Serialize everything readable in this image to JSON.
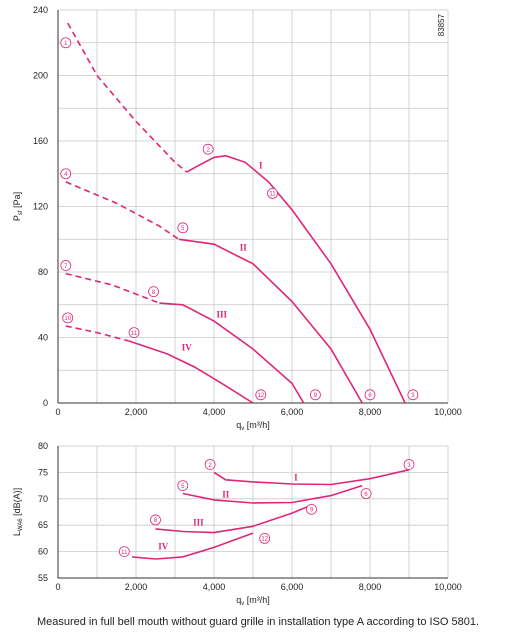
{
  "chart_data": [
    {
      "type": "line",
      "id_label": "83857",
      "x_label": {
        "main": "q",
        "sub": "v",
        "unit": " [m³/h]"
      },
      "y_label": {
        "main": "P",
        "sub": "sf",
        "unit": " [Pa]"
      },
      "xlim": [
        0,
        10000
      ],
      "ylim": [
        0,
        240
      ],
      "xticks": [
        0,
        {
          "value": 2000,
          "label": "2,000"
        },
        {
          "value": 4000,
          "label": "4,000"
        },
        {
          "value": 6000,
          "label": "6,000"
        },
        {
          "value": 8000,
          "label": "8,000"
        },
        {
          "value": 10000,
          "label": "10,000"
        }
      ],
      "yticks": [
        0,
        40,
        80,
        120,
        160,
        200,
        240
      ],
      "minor_xticks": [
        1000,
        3000,
        5000,
        7000,
        9000
      ],
      "minor_yticks": [
        20,
        60,
        100,
        140,
        180,
        220
      ],
      "color": "#e0267a",
      "series": [
        {
          "name": "I",
          "label_at": [
            5200,
            145
          ],
          "segments": [
            {
              "style": "dashed",
              "x": [
                250,
                1000,
                2000,
                3000,
                3300
              ],
              "y": [
                232,
                200,
                172,
                147,
                141
              ]
            },
            {
              "style": "solid",
              "x": [
                3300,
                3600,
                4000,
                4300,
                4800,
                5400,
                6000,
                7000,
                8000,
                8900
              ],
              "y": [
                141,
                145,
                150,
                151,
                147,
                135,
                118,
                85,
                45,
                0
              ]
            }
          ]
        },
        {
          "name": "II",
          "label_at": [
            4750,
            95
          ],
          "segments": [
            {
              "style": "dashed",
              "x": [
                200,
                1500,
                2600,
                3100
              ],
              "y": [
                135,
                122,
                108,
                100
              ]
            },
            {
              "style": "solid",
              "x": [
                3100,
                4000,
                5000,
                6000,
                7000,
                7800
              ],
              "y": [
                100,
                97,
                85,
                62,
                33,
                0
              ]
            }
          ]
        },
        {
          "name": "III",
          "label_at": [
            4200,
            54
          ],
          "segments": [
            {
              "style": "dashed",
              "x": [
                200,
                1400,
                2600
              ],
              "y": [
                79,
                72,
                61
              ]
            },
            {
              "style": "solid",
              "x": [
                2600,
                3200,
                4000,
                5000,
                6000,
                6300
              ],
              "y": [
                61,
                60,
                50,
                33,
                12,
                0
              ]
            }
          ]
        },
        {
          "name": "IV",
          "label_at": [
            3300,
            34
          ],
          "segments": [
            {
              "style": "dashed",
              "x": [
                200,
                1000,
                1800
              ],
              "y": [
                47,
                43,
                38
              ]
            },
            {
              "style": "solid",
              "x": [
                1800,
                2800,
                3500,
                4200,
                5000
              ],
              "y": [
                38,
                30,
                22,
                12,
                0
              ]
            }
          ]
        }
      ],
      "markers": [
        {
          "label": "1",
          "x": 200,
          "y": 220
        },
        {
          "label": "2",
          "x": 3850,
          "y": 155
        },
        {
          "label": "3",
          "x": 9100,
          "y": 5
        },
        {
          "label": "4",
          "x": 200,
          "y": 140
        },
        {
          "label": "5",
          "x": 3200,
          "y": 107
        },
        {
          "label": "6",
          "x": 8000,
          "y": 5
        },
        {
          "label": "7",
          "x": 200,
          "y": 84
        },
        {
          "label": "8",
          "x": 2450,
          "y": 68
        },
        {
          "label": "9",
          "x": 6600,
          "y": 5
        },
        {
          "label": "10",
          "x": 250,
          "y": 52
        },
        {
          "label": "11",
          "x": 1950,
          "y": 43
        },
        {
          "label": "12",
          "x": 5200,
          "y": 5
        },
        {
          "label": "11",
          "x": 5500,
          "y": 128
        }
      ]
    },
    {
      "type": "line",
      "x_label": {
        "main": "q",
        "sub": "v",
        "unit": " [m³/h]"
      },
      "y_label": {
        "main": "L",
        "sub": "WA6",
        "unit": " [dB(A)]"
      },
      "xlim": [
        0,
        10000
      ],
      "ylim": [
        55,
        80
      ],
      "xticks": [
        0,
        {
          "value": 2000,
          "label": "2,000"
        },
        {
          "value": 4000,
          "label": "4,000"
        },
        {
          "value": 6000,
          "label": "6,000"
        },
        {
          "value": 8000,
          "label": "8,000"
        },
        {
          "value": 10000,
          "label": "10,000"
        }
      ],
      "yticks": [
        55,
        60,
        65,
        70,
        75,
        80
      ],
      "minor_xticks": [
        1000,
        3000,
        5000,
        7000,
        9000
      ],
      "minor_yticks": [],
      "color": "#e0267a",
      "series": [
        {
          "name": "I",
          "label_at": [
            6100,
            74
          ],
          "segments": [
            {
              "style": "solid",
              "x": [
                4000,
                4300,
                5000,
                6000,
                7000,
                8000,
                9000
              ],
              "y": [
                75,
                73.6,
                73.2,
                72.8,
                72.7,
                73.8,
                75.5
              ]
            }
          ]
        },
        {
          "name": "II",
          "label_at": [
            4300,
            70.8
          ],
          "segments": [
            {
              "style": "solid",
              "x": [
                3200,
                4000,
                5000,
                6000,
                7000,
                7800
              ],
              "y": [
                71,
                69.8,
                69.2,
                69.3,
                70.6,
                72.5
              ]
            }
          ]
        },
        {
          "name": "III",
          "label_at": [
            3600,
            65.5
          ],
          "segments": [
            {
              "style": "solid",
              "x": [
                2500,
                3200,
                4000,
                5000,
                6000,
                6400
              ],
              "y": [
                64.3,
                63.8,
                63.6,
                64.8,
                67.3,
                68.5
              ]
            }
          ]
        },
        {
          "name": "IV",
          "label_at": [
            2700,
            61
          ],
          "segments": [
            {
              "style": "solid",
              "x": [
                1900,
                2500,
                3200,
                4000,
                5000
              ],
              "y": [
                59,
                58.6,
                59,
                60.8,
                63.5
              ]
            }
          ]
        }
      ],
      "markers": [
        {
          "label": "2",
          "x": 3900,
          "y": 76.5
        },
        {
          "label": "3",
          "x": 9000,
          "y": 76.5
        },
        {
          "label": "5",
          "x": 3200,
          "y": 72.5
        },
        {
          "label": "6",
          "x": 7900,
          "y": 71
        },
        {
          "label": "8",
          "x": 2500,
          "y": 66
        },
        {
          "label": "9",
          "x": 6500,
          "y": 68
        },
        {
          "label": "11",
          "x": 1700,
          "y": 60
        },
        {
          "label": "12",
          "x": 5300,
          "y": 62.5
        }
      ]
    }
  ],
  "caption": "Measured in full bell mouth without guard grille in installation type A according to ISO 5801."
}
